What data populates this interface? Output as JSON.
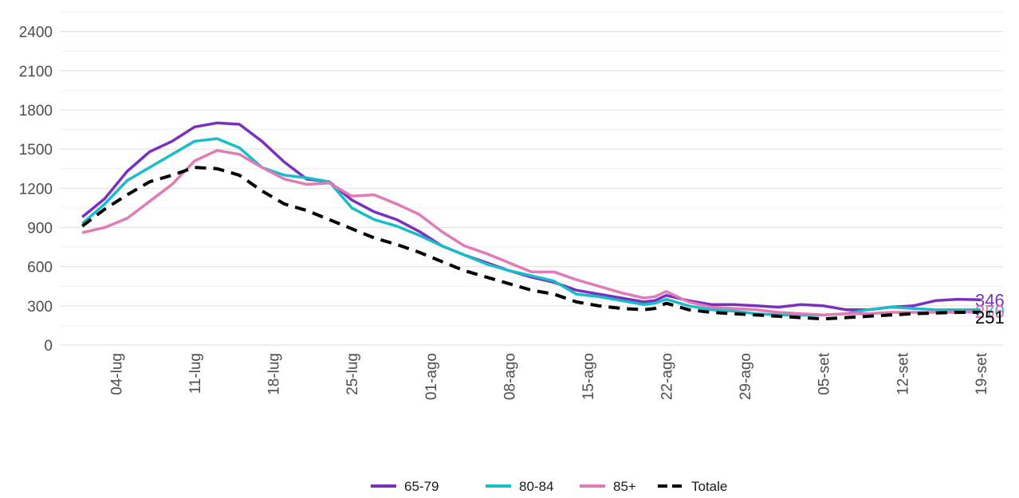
{
  "chart_data": {
    "type": "line",
    "title": "",
    "xlabel": "",
    "ylabel": "",
    "ylim": [
      0,
      2550
    ],
    "y_ticks": [
      0,
      300,
      600,
      900,
      1200,
      1500,
      1800,
      2100,
      2400
    ],
    "x_ticks": [
      "04-lug",
      "11-lug",
      "18-lug",
      "25-lug",
      "01-ago",
      "08-ago",
      "15-ago",
      "22-ago",
      "29-ago",
      "05-set",
      "12-set",
      "19-set"
    ],
    "x_tick_days": [
      3,
      10,
      17,
      24,
      31,
      38,
      45,
      52,
      59,
      66,
      73,
      80
    ],
    "grid": true,
    "legend_position": "bottom",
    "x": [
      0,
      2,
      4,
      6,
      8,
      10,
      12,
      14,
      16,
      18,
      20,
      22,
      24,
      26,
      28,
      30,
      32,
      34,
      36,
      38,
      40,
      42,
      44,
      46,
      48,
      50,
      51,
      52,
      54,
      56,
      58,
      60,
      62,
      64,
      66,
      68,
      70,
      72,
      74,
      76,
      78,
      80
    ],
    "series": [
      {
        "name": "65-79",
        "color": "#7b2fbf",
        "dash": false,
        "values": [
          980,
          1120,
          1330,
          1480,
          1560,
          1670,
          1700,
          1690,
          1560,
          1400,
          1270,
          1250,
          1110,
          1020,
          960,
          870,
          760,
          690,
          630,
          570,
          520,
          480,
          420,
          390,
          360,
          330,
          340,
          380,
          340,
          310,
          310,
          300,
          290,
          310,
          300,
          270,
          270,
          290,
          300,
          340,
          350,
          346
        ],
        "end_label": "346"
      },
      {
        "name": "80-84",
        "color": "#17bec9",
        "dash": false,
        "values": [
          930,
          1080,
          1260,
          1360,
          1460,
          1560,
          1580,
          1510,
          1360,
          1300,
          1280,
          1250,
          1050,
          960,
          910,
          840,
          760,
          690,
          620,
          570,
          530,
          490,
          390,
          370,
          340,
          310,
          320,
          350,
          300,
          270,
          260,
          240,
          230,
          230,
          230,
          240,
          270,
          290,
          280,
          270,
          270,
          270
        ],
        "end_label": "270"
      },
      {
        "name": "85+",
        "color": "#e07bb5",
        "dash": false,
        "values": [
          860,
          900,
          970,
          1100,
          1230,
          1410,
          1490,
          1460,
          1360,
          1270,
          1230,
          1240,
          1140,
          1150,
          1080,
          1000,
          870,
          760,
          700,
          630,
          560,
          560,
          500,
          450,
          400,
          360,
          370,
          410,
          330,
          290,
          280,
          270,
          250,
          240,
          230,
          240,
          240,
          250,
          250,
          250,
          250,
          255
        ],
        "end_label": "255"
      },
      {
        "name": "Totale",
        "color": "#000000",
        "dash": true,
        "values": [
          910,
          1040,
          1150,
          1250,
          1300,
          1360,
          1350,
          1300,
          1180,
          1080,
          1030,
          960,
          890,
          820,
          770,
          710,
          640,
          570,
          520,
          470,
          420,
          390,
          330,
          300,
          280,
          270,
          280,
          320,
          270,
          250,
          240,
          230,
          220,
          210,
          200,
          210,
          220,
          230,
          240,
          245,
          250,
          251
        ],
        "end_label": "251"
      }
    ]
  }
}
